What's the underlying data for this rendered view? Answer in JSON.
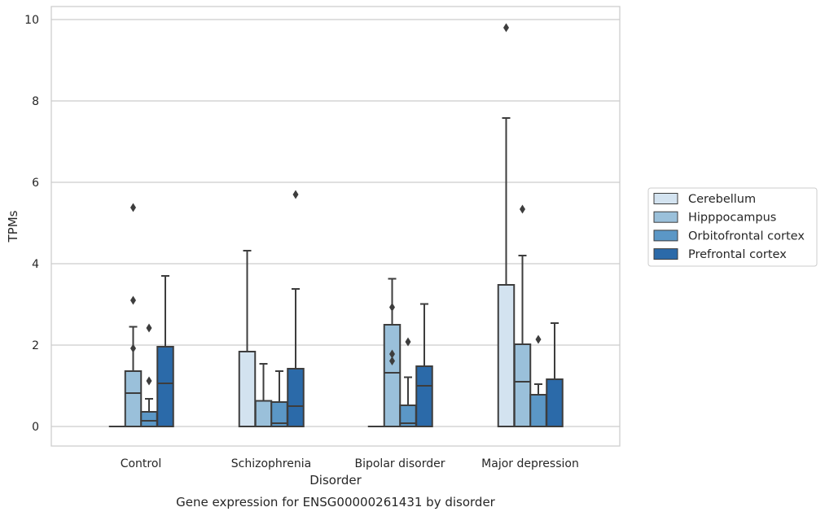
{
  "chart_data": {
    "type": "box",
    "title": "",
    "caption": "Gene expression for ENSG00000261431 by disorder",
    "xlabel": "Disorder",
    "ylabel": "TPMs",
    "categories": [
      "Control",
      "Schizophrenia",
      "Bipolar disorder",
      "Major depression"
    ],
    "yticks": [
      "0",
      "2",
      "4",
      "6",
      "8",
      "10"
    ],
    "ylim": [
      -0.47,
      10.3
    ],
    "grid": "horizontal",
    "legend_position": "right",
    "series": [
      {
        "name": "Cerebellum",
        "color": "#d3e3f0",
        "boxes": [
          {
            "q1": 0,
            "median": 0,
            "q3": 0,
            "whisker_low": 0,
            "whisker_high": 0,
            "outliers": []
          },
          {
            "q1": 0,
            "median": 0,
            "q3": 1.84,
            "whisker_low": 0,
            "whisker_high": 4.32,
            "outliers": []
          },
          {
            "q1": 0,
            "median": 0,
            "q3": 0,
            "whisker_low": 0,
            "whisker_high": 0,
            "outliers": []
          },
          {
            "q1": 0,
            "median": 0,
            "q3": 3.48,
            "whisker_low": 0,
            "whisker_high": 7.58,
            "outliers": [
              9.8
            ]
          }
        ]
      },
      {
        "name": "Hipppocampus",
        "color": "#9ac0da",
        "boxes": [
          {
            "q1": 0,
            "median": 0.82,
            "q3": 1.36,
            "whisker_low": 0,
            "whisker_high": 2.45,
            "outliers": [
              5.38,
              3.1,
              1.92
            ]
          },
          {
            "q1": 0,
            "median": 0.63,
            "q3": 0.63,
            "whisker_low": 0,
            "whisker_high": 1.54,
            "outliers": []
          },
          {
            "q1": 0,
            "median": 1.32,
            "q3": 2.5,
            "whisker_low": 0,
            "whisker_high": 3.63,
            "outliers": [
              2.93,
              1.78,
              1.61
            ]
          },
          {
            "q1": 0,
            "median": 1.1,
            "q3": 2.02,
            "whisker_low": 0,
            "whisker_high": 4.2,
            "outliers": [
              5.34
            ]
          }
        ]
      },
      {
        "name": "Orbitofrontal cortex",
        "color": "#5b97c6",
        "boxes": [
          {
            "q1": 0,
            "median": 0.14,
            "q3": 0.36,
            "whisker_low": 0,
            "whisker_high": 0.68,
            "outliers": [
              2.42,
              1.12
            ]
          },
          {
            "q1": 0,
            "median": 0.08,
            "q3": 0.6,
            "whisker_low": 0,
            "whisker_high": 1.36,
            "outliers": []
          },
          {
            "q1": 0,
            "median": 0.08,
            "q3": 0.52,
            "whisker_low": 0,
            "whisker_high": 1.21,
            "outliers": [
              2.08
            ]
          },
          {
            "q1": 0,
            "median": 0.78,
            "q3": 0.78,
            "whisker_low": 0,
            "whisker_high": 1.04,
            "outliers": [
              2.14
            ]
          }
        ]
      },
      {
        "name": "Prefrontal cortex",
        "color": "#2b6aa9",
        "boxes": [
          {
            "q1": 0,
            "median": 1.06,
            "q3": 1.96,
            "whisker_low": 0,
            "whisker_high": 3.7,
            "outliers": []
          },
          {
            "q1": 0,
            "median": 0.5,
            "q3": 1.42,
            "whisker_low": 0,
            "whisker_high": 3.38,
            "outliers": [
              5.7
            ]
          },
          {
            "q1": 0,
            "median": 1.0,
            "q3": 1.48,
            "whisker_low": 0,
            "whisker_high": 3.01,
            "outliers": []
          },
          {
            "q1": 0,
            "median": 1.16,
            "q3": 1.16,
            "whisker_low": 0,
            "whisker_high": 2.54,
            "outliers": []
          }
        ]
      }
    ]
  }
}
